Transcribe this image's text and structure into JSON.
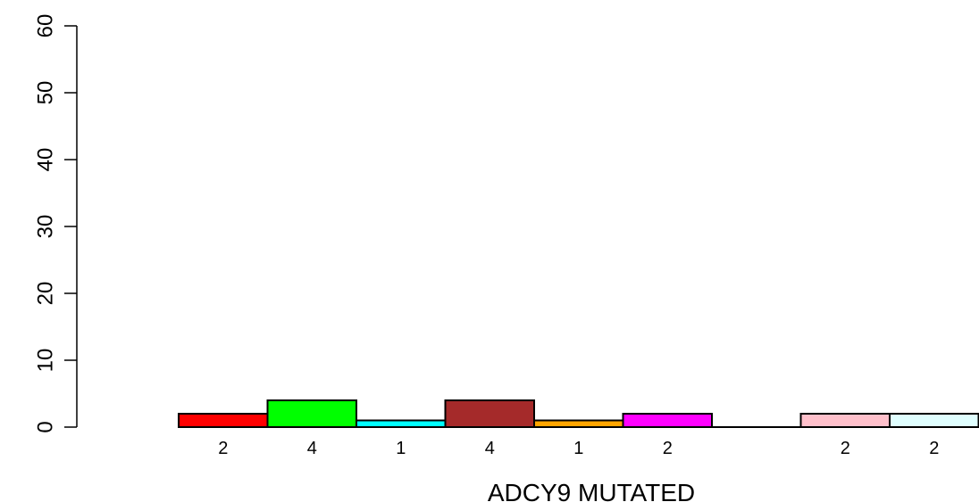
{
  "chart_data": {
    "type": "bar",
    "title": "",
    "xlabel": "ADCY9 MUTATED",
    "ylabel": "",
    "ylim": [
      0,
      60
    ],
    "yticks": [
      0,
      10,
      20,
      30,
      40,
      50,
      60
    ],
    "grid": false,
    "legend": "none",
    "categories": [
      "",
      "",
      "",
      "",
      "",
      "",
      "",
      "",
      ""
    ],
    "values": [
      2,
      4,
      1,
      4,
      1,
      2,
      0,
      2,
      2
    ],
    "value_labels": [
      "2",
      "4",
      "1",
      "4",
      "1",
      "2",
      "",
      "2",
      "2"
    ],
    "colors": [
      "#ff0000",
      "#00ff00",
      "#00ffff",
      "#a52a2a",
      "#ffa500",
      "#ff00ff",
      "#000000",
      "#ffc0cb",
      "#e0ffff"
    ]
  }
}
